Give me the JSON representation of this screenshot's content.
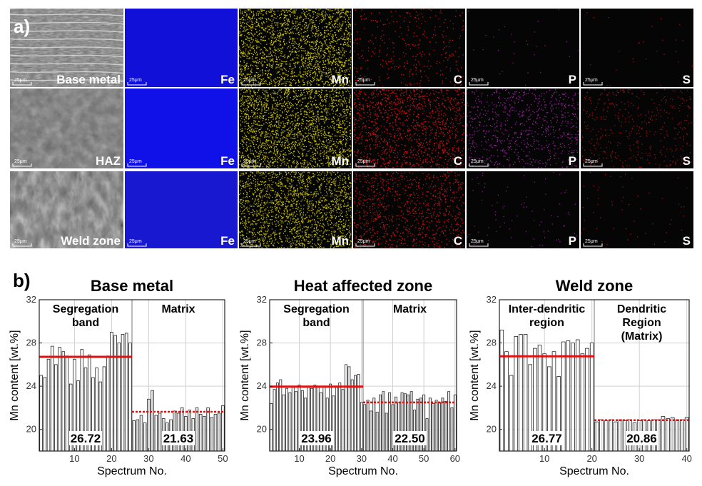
{
  "panel_a": {
    "letter": "a)",
    "rows": [
      {
        "name": "Base metal",
        "tiles": [
          {
            "label": "Base metal",
            "kind": "sem"
          },
          {
            "label": "Fe",
            "color": "#1010d8",
            "density": 0.0
          },
          {
            "label": "Mn",
            "color": "#c8c000",
            "density": 0.75
          },
          {
            "label": "C",
            "color": "#d01010",
            "density": 0.12
          },
          {
            "label": "P",
            "color": "#8a1a8a",
            "density": 0.01
          },
          {
            "label": "S",
            "color": "#a01010",
            "density": 0.01
          }
        ]
      },
      {
        "name": "HAZ",
        "tiles": [
          {
            "label": "HAZ",
            "kind": "sem"
          },
          {
            "label": "Fe",
            "color": "#1010e8",
            "density": 0.0
          },
          {
            "label": "Mn",
            "color": "#c8c000",
            "density": 0.75
          },
          {
            "label": "C",
            "color": "#d01010",
            "density": 0.45
          },
          {
            "label": "P",
            "color": "#9a20a0",
            "density": 0.25
          },
          {
            "label": "S",
            "color": "#a01010",
            "density": 0.14
          }
        ]
      },
      {
        "name": "Weld zone",
        "tiles": [
          {
            "label": "Weld zone",
            "kind": "sem"
          },
          {
            "label": "Fe",
            "color": "#1818d0",
            "density": 0.0
          },
          {
            "label": "Mn",
            "color": "#c0b800",
            "density": 0.7
          },
          {
            "label": "C",
            "color": "#c81010",
            "density": 0.35
          },
          {
            "label": "P",
            "color": "#8a1a8a",
            "density": 0.03
          },
          {
            "label": "S",
            "color": "#a01010",
            "density": 0.02
          }
        ]
      }
    ],
    "scale_bar_text": "25μm"
  },
  "panel_b": {
    "letter": "b)"
  },
  "chart_data": [
    {
      "type": "bar",
      "title": "Base metal",
      "xlabel": "Spectrum No.",
      "ylabel": "Mn content [wt.%]",
      "ylim": [
        18,
        32
      ],
      "xlim": [
        0.5,
        50.5
      ],
      "xticks": [
        10,
        20,
        30,
        40,
        50
      ],
      "yticks": [
        20,
        24,
        28,
        32
      ],
      "x": [
        1,
        2,
        3,
        4,
        5,
        6,
        7,
        8,
        9,
        10,
        11,
        12,
        13,
        14,
        15,
        16,
        17,
        18,
        19,
        20,
        21,
        22,
        23,
        24,
        25,
        26,
        27,
        28,
        29,
        30,
        31,
        32,
        33,
        34,
        35,
        36,
        37,
        38,
        39,
        40,
        41,
        42,
        43,
        44,
        45,
        46,
        47,
        48,
        49,
        50
      ],
      "values": [
        25.0,
        24.8,
        26.5,
        27.7,
        26.0,
        27.6,
        27.2,
        26.8,
        24.2,
        26.5,
        24.5,
        27.4,
        25.7,
        26.9,
        24.8,
        25.7,
        24.4,
        25.8,
        26.8,
        29.0,
        28.7,
        28.0,
        28.8,
        28.9,
        28.0,
        20.8,
        20.9,
        21.3,
        20.6,
        22.8,
        23.6,
        21.3,
        21.5,
        21.0,
        20.6,
        20.9,
        21.7,
        21.5,
        22.0,
        21.2,
        21.8,
        21.0,
        22.0,
        21.4,
        21.2,
        22.0,
        21.1,
        21.4,
        21.5,
        22.2
      ],
      "regions": [
        {
          "label_lines": [
            "Segregation",
            "band"
          ],
          "start": 1,
          "end": 25
        },
        {
          "label_lines": [
            "Matrix"
          ],
          "start": 26,
          "end": 50
        }
      ],
      "averages": [
        {
          "value": 26.72,
          "label": "26.72",
          "start": 1,
          "end": 25,
          "style": "solid"
        },
        {
          "value": 21.63,
          "label": "21.63",
          "start": 26,
          "end": 50,
          "style": "dotted"
        }
      ]
    },
    {
      "type": "bar",
      "title": "Heat affected zone",
      "xlabel": "Spectrum No.",
      "ylabel": "Mn content [wt.%]",
      "ylim": [
        18,
        32
      ],
      "xlim": [
        0.5,
        60.5
      ],
      "xticks": [
        10,
        20,
        30,
        40,
        50,
        60
      ],
      "yticks": [
        20,
        24,
        28,
        32
      ],
      "x": [
        1,
        2,
        3,
        4,
        5,
        6,
        7,
        8,
        9,
        10,
        11,
        12,
        13,
        14,
        15,
        16,
        17,
        18,
        19,
        20,
        21,
        22,
        23,
        24,
        25,
        26,
        27,
        28,
        29,
        30,
        31,
        32,
        33,
        34,
        35,
        36,
        37,
        38,
        39,
        40,
        41,
        42,
        43,
        44,
        45,
        46,
        47,
        48,
        49,
        50,
        51,
        52,
        53,
        54,
        55,
        56,
        57,
        58,
        59,
        60
      ],
      "values": [
        22.4,
        23.7,
        24.3,
        24.6,
        23.2,
        23.8,
        23.4,
        24.0,
        23.5,
        24.1,
        23.6,
        22.9,
        24.0,
        23.8,
        24.1,
        24.0,
        23.4,
        24.0,
        22.9,
        24.2,
        23.1,
        24.0,
        24.3,
        23.7,
        26.0,
        25.8,
        24.6,
        25.0,
        25.1,
        22.5,
        22.3,
        22.7,
        21.7,
        22.9,
        21.6,
        23.2,
        23.5,
        21.5,
        23.4,
        22.3,
        23.0,
        22.5,
        23.4,
        23.3,
        23.2,
        23.5,
        21.8,
        22.8,
        22.9,
        23.2,
        21.0,
        22.9,
        22.4,
        22.7,
        22.5,
        22.9,
        22.6,
        23.5,
        22.0,
        23.2
      ],
      "regions": [
        {
          "label_lines": [
            "Segregation",
            "band"
          ],
          "start": 1,
          "end": 30
        },
        {
          "label_lines": [
            "Matrix"
          ],
          "start": 31,
          "end": 60
        }
      ],
      "averages": [
        {
          "value": 23.96,
          "label": "23.96",
          "start": 1,
          "end": 30,
          "style": "solid"
        },
        {
          "value": 22.5,
          "label": "22.50",
          "start": 31,
          "end": 60,
          "style": "dotted"
        }
      ]
    },
    {
      "type": "bar",
      "title": "Weld zone",
      "xlabel": "Spectrum No.",
      "ylabel": "Mn content [wt.%]",
      "ylim": [
        18,
        32
      ],
      "xlim": [
        0.5,
        40.5
      ],
      "xticks": [
        10,
        20,
        30,
        40
      ],
      "yticks": [
        20,
        24,
        28,
        32
      ],
      "x": [
        1,
        2,
        3,
        4,
        5,
        6,
        7,
        8,
        9,
        10,
        11,
        12,
        13,
        14,
        15,
        16,
        17,
        18,
        19,
        20,
        21,
        22,
        23,
        24,
        25,
        26,
        27,
        28,
        29,
        30,
        31,
        32,
        33,
        34,
        35,
        36,
        37,
        38,
        39,
        40
      ],
      "values": [
        29.2,
        27.2,
        25.0,
        28.6,
        28.8,
        28.8,
        26.0,
        27.5,
        27.8,
        27.0,
        25.8,
        27.2,
        24.9,
        28.1,
        28.2,
        28.0,
        28.3,
        27.0,
        27.5,
        28.0,
        20.7,
        20.9,
        20.8,
        20.9,
        20.7,
        20.9,
        20.8,
        20.9,
        20.6,
        20.8,
        20.9,
        20.8,
        20.9,
        20.9,
        21.2,
        21.0,
        21.1,
        20.9,
        20.9,
        21.1
      ],
      "regions": [
        {
          "label_lines": [
            "Inter-dendritic",
            "region"
          ],
          "start": 1,
          "end": 20
        },
        {
          "label_lines": [
            "Dendritic",
            "Region",
            "(Matrix)"
          ],
          "start": 21,
          "end": 40
        }
      ],
      "averages": [
        {
          "value": 26.77,
          "label": "26.77",
          "start": 1,
          "end": 20,
          "style": "solid"
        },
        {
          "value": 20.86,
          "label": "20.86",
          "start": 21,
          "end": 40,
          "style": "dotted"
        }
      ]
    }
  ]
}
